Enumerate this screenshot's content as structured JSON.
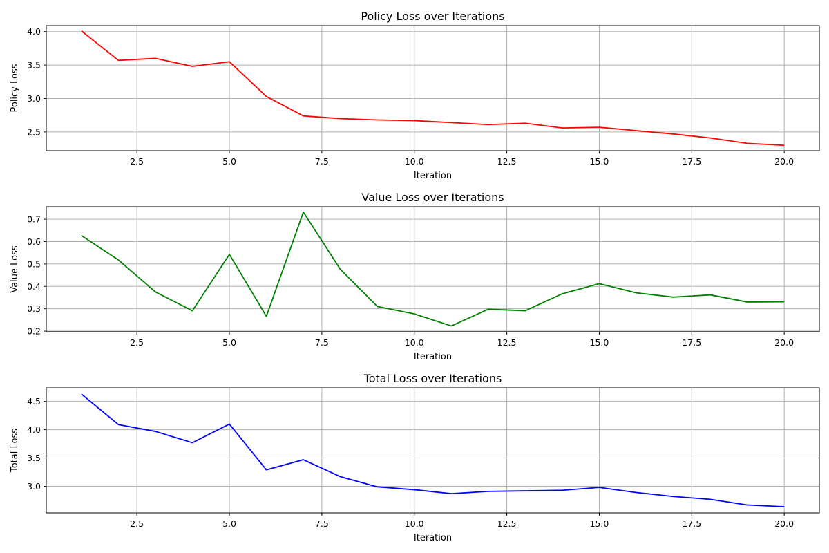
{
  "chart_data": [
    {
      "type": "line",
      "title": "Policy Loss over Iterations",
      "xlabel": "Iteration",
      "ylabel": "Policy Loss",
      "xlim": [
        0.05,
        20.95
      ],
      "ylim": [
        2.22,
        4.09
      ],
      "xticks": [
        2.5,
        5.0,
        7.5,
        10.0,
        12.5,
        15.0,
        17.5,
        20.0
      ],
      "xtick_labels": [
        "2.5",
        "5.0",
        "7.5",
        "10.0",
        "12.5",
        "15.0",
        "17.5",
        "20.0"
      ],
      "yticks": [
        2.5,
        3.0,
        3.5,
        4.0
      ],
      "ytick_labels": [
        "2.5",
        "3.0",
        "3.5",
        "4.0"
      ],
      "grid": true,
      "series": [
        {
          "color": "#ff0000",
          "x": [
            1,
            2,
            3,
            4,
            5,
            6,
            7,
            8,
            9,
            10,
            11,
            12,
            13,
            14,
            15,
            16,
            17,
            18,
            19,
            20
          ],
          "y": [
            4.01,
            3.57,
            3.6,
            3.48,
            3.55,
            3.03,
            2.74,
            2.7,
            2.68,
            2.67,
            2.64,
            2.61,
            2.63,
            2.56,
            2.57,
            2.52,
            2.47,
            2.41,
            2.33,
            2.3
          ]
        }
      ]
    },
    {
      "type": "line",
      "title": "Value Loss over Iterations",
      "xlabel": "Iteration",
      "ylabel": "Value Loss",
      "xlim": [
        0.05,
        20.95
      ],
      "ylim": [
        0.197,
        0.756
      ],
      "xticks": [
        2.5,
        5.0,
        7.5,
        10.0,
        12.5,
        15.0,
        17.5,
        20.0
      ],
      "xtick_labels": [
        "2.5",
        "5.0",
        "7.5",
        "10.0",
        "12.5",
        "15.0",
        "17.5",
        "20.0"
      ],
      "yticks": [
        0.2,
        0.3,
        0.4,
        0.5,
        0.6,
        0.7
      ],
      "ytick_labels": [
        "0.2",
        "0.3",
        "0.4",
        "0.5",
        "0.6",
        "0.7"
      ],
      "grid": true,
      "series": [
        {
          "color": "#008000",
          "x": [
            1,
            2,
            3,
            4,
            5,
            6,
            7,
            8,
            9,
            10,
            11,
            12,
            13,
            14,
            15,
            16,
            17,
            18,
            19,
            20
          ],
          "y": [
            0.627,
            0.518,
            0.375,
            0.291,
            0.543,
            0.266,
            0.732,
            0.476,
            0.31,
            0.277,
            0.223,
            0.298,
            0.291,
            0.367,
            0.412,
            0.371,
            0.352,
            0.362,
            0.33,
            0.331
          ]
        }
      ]
    },
    {
      "type": "line",
      "title": "Total Loss over Iterations",
      "xlabel": "Iteration",
      "ylabel": "Total Loss",
      "xlim": [
        0.05,
        20.95
      ],
      "ylim": [
        2.53,
        4.74
      ],
      "xticks": [
        2.5,
        5.0,
        7.5,
        10.0,
        12.5,
        15.0,
        17.5,
        20.0
      ],
      "xtick_labels": [
        "2.5",
        "5.0",
        "7.5",
        "10.0",
        "12.5",
        "15.0",
        "17.5",
        "20.0"
      ],
      "yticks": [
        3.0,
        3.5,
        4.0,
        4.5
      ],
      "ytick_labels": [
        "3.0",
        "3.5",
        "4.0",
        "4.5"
      ],
      "grid": true,
      "series": [
        {
          "color": "#0000ff",
          "x": [
            1,
            2,
            3,
            4,
            5,
            6,
            7,
            8,
            9,
            10,
            11,
            12,
            13,
            14,
            15,
            16,
            17,
            18,
            19,
            20
          ],
          "y": [
            4.63,
            4.09,
            3.97,
            3.77,
            4.1,
            3.29,
            3.47,
            3.17,
            2.99,
            2.94,
            2.87,
            2.91,
            2.92,
            2.93,
            2.98,
            2.89,
            2.82,
            2.77,
            2.67,
            2.64
          ]
        }
      ]
    }
  ]
}
